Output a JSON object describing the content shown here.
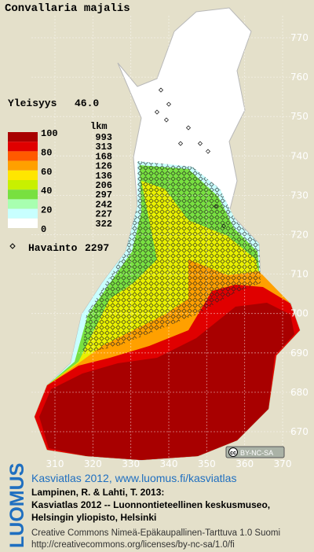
{
  "title": "Convallaria majalis",
  "frequency": {
    "label": "Yleisyys",
    "value": "46.0"
  },
  "legend": {
    "scale_labels": [
      100,
      80,
      60,
      40,
      20,
      0
    ],
    "count_header": "lkm",
    "classes": [
      {
        "color": "#a80000",
        "count": 993
      },
      {
        "color": "#e00000",
        "count": 313
      },
      {
        "color": "#ff5a00",
        "count": 168
      },
      {
        "color": "#ffa000",
        "count": 126
      },
      {
        "color": "#ffe600",
        "count": 136
      },
      {
        "color": "#c8f000",
        "count": 206
      },
      {
        "color": "#78e040",
        "count": 297
      },
      {
        "color": "#a8ffb0",
        "count": 242
      },
      {
        "color": "#c8ffff",
        "count": 227
      },
      {
        "color": "#ffffff",
        "count": 322
      }
    ],
    "observations": {
      "label": "Havainto",
      "count": 2297
    }
  },
  "map": {
    "xticks": [
      310,
      320,
      330,
      340,
      350,
      360,
      370
    ],
    "yticks": [
      770,
      760,
      750,
      740,
      730,
      720,
      710,
      700,
      690,
      680,
      670
    ],
    "license_badge": "BY-NC-SA"
  },
  "footer": {
    "logo": "LUOMUS",
    "source": "Kasviatlas 2012, www.luomus.fi/kasviatlas",
    "citation": [
      "Lampinen, R. & Lahti, T. 2013:",
      "Kasviatlas 2012 -- Luonnontieteellinen keskusmuseo,",
      "Helsingin yliopisto, Helsinki"
    ],
    "license": [
      "Creative Commons Nimeä-Epäkaupallinen-Tarttuva 1.0 Suomi",
      "http://creativecommons.org/licenses/by-nc-sa/1.0/fi"
    ]
  }
}
